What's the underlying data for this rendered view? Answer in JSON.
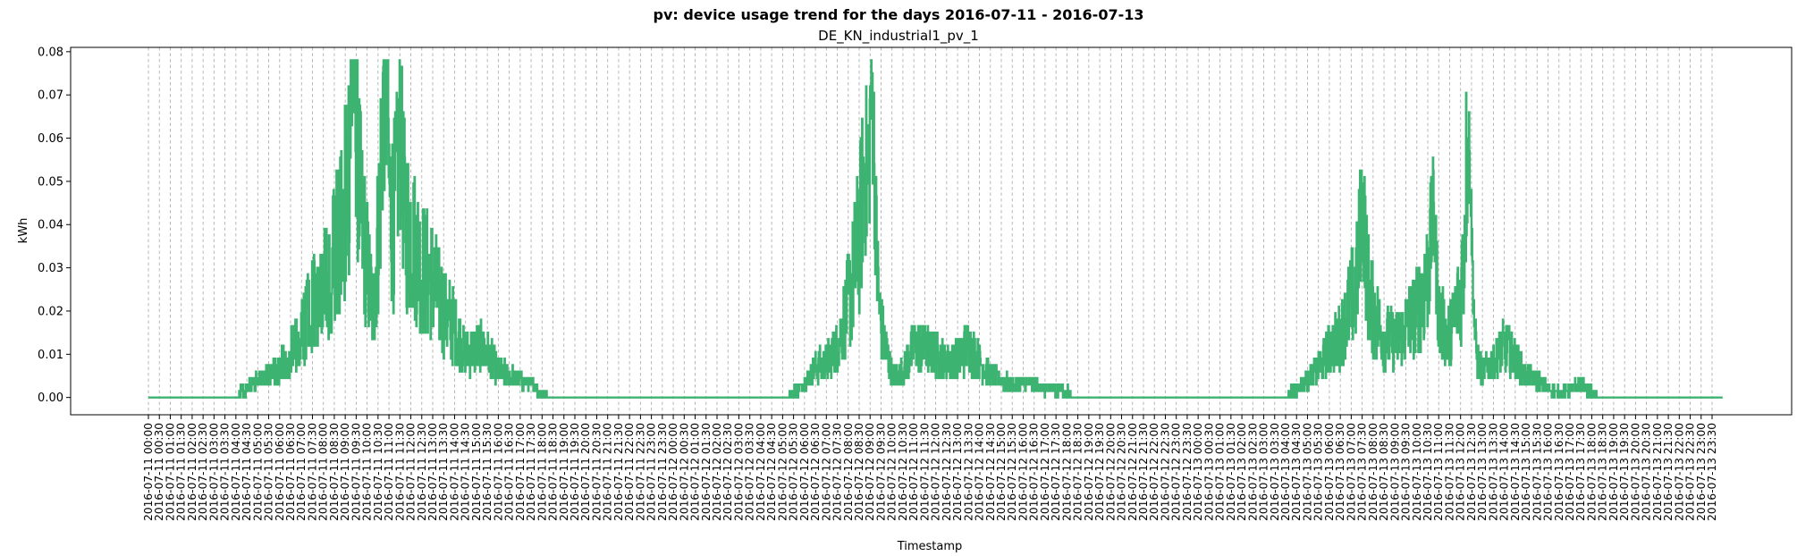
{
  "chart_data": {
    "type": "line",
    "title": "pv: device usage trend for the days 2016-07-11 - 2016-07-13",
    "subtitle": "DE_KN_industrial1_pv_1",
    "xlabel": "Timestamp",
    "ylabel": "kWh",
    "ylim": [
      -0.004,
      0.081
    ],
    "yticks": [
      0.0,
      0.01,
      0.02,
      0.03,
      0.04,
      0.05,
      0.06,
      0.07,
      0.08
    ],
    "ytick_labels": [
      "0.00",
      "0.01",
      "0.02",
      "0.03",
      "0.04",
      "0.05",
      "0.06",
      "0.07",
      "0.08"
    ],
    "x_range": [
      "2016-07-11 00:00",
      "2016-07-13 23:59"
    ],
    "x_tick_interval": "30 min",
    "grid": "vertical dashed at each x tick",
    "series": [
      {
        "color": "#3cb371",
        "points": [
          [
            "2016-07-11 00:00",
            0.0
          ],
          [
            "2016-07-11 04:00",
            0.0
          ],
          [
            "2016-07-11 04:30",
            0.002
          ],
          [
            "2016-07-11 05:00",
            0.004
          ],
          [
            "2016-07-11 05:30",
            0.005
          ],
          [
            "2016-07-11 06:00",
            0.007
          ],
          [
            "2016-07-11 06:30",
            0.01
          ],
          [
            "2016-07-11 07:00",
            0.015
          ],
          [
            "2016-07-11 07:30",
            0.021
          ],
          [
            "2016-07-11 08:00",
            0.025
          ],
          [
            "2016-07-11 08:30",
            0.033
          ],
          [
            "2016-07-11 09:00",
            0.045
          ],
          [
            "2016-07-11 09:20",
            0.065
          ],
          [
            "2016-07-11 09:30",
            0.052
          ],
          [
            "2016-07-11 09:45",
            0.04
          ],
          [
            "2016-07-11 10:00",
            0.03
          ],
          [
            "2016-07-11 10:15",
            0.02
          ],
          [
            "2016-07-11 10:30",
            0.038
          ],
          [
            "2016-07-11 10:45",
            0.06
          ],
          [
            "2016-07-11 11:00",
            0.042
          ],
          [
            "2016-07-11 11:30",
            0.04
          ],
          [
            "2016-07-11 12:00",
            0.038
          ],
          [
            "2016-07-11 12:30",
            0.03
          ],
          [
            "2016-07-11 13:00",
            0.027
          ],
          [
            "2016-07-11 13:30",
            0.02
          ],
          [
            "2016-07-11 14:00",
            0.016
          ],
          [
            "2016-07-11 14:30",
            0.01
          ],
          [
            "2016-07-11 15:00",
            0.012
          ],
          [
            "2016-07-11 15:30",
            0.01
          ],
          [
            "2016-07-11 16:00",
            0.006
          ],
          [
            "2016-07-11 16:30",
            0.005
          ],
          [
            "2016-07-11 17:00",
            0.004
          ],
          [
            "2016-07-11 17:30",
            0.003
          ],
          [
            "2016-07-11 18:00",
            0.001
          ],
          [
            "2016-07-11 18:30",
            0.0
          ],
          [
            "2016-07-12 05:00",
            0.0
          ],
          [
            "2016-07-12 05:30",
            0.001
          ],
          [
            "2016-07-12 06:00",
            0.003
          ],
          [
            "2016-07-12 06:30",
            0.007
          ],
          [
            "2016-07-12 07:00",
            0.008
          ],
          [
            "2016-07-12 07:30",
            0.012
          ],
          [
            "2016-07-12 08:00",
            0.022
          ],
          [
            "2016-07-12 08:30",
            0.036
          ],
          [
            "2016-07-12 09:00",
            0.04
          ],
          [
            "2016-07-12 09:15",
            0.03
          ],
          [
            "2016-07-12 09:30",
            0.016
          ],
          [
            "2016-07-12 10:00",
            0.005
          ],
          [
            "2016-07-12 10:30",
            0.006
          ],
          [
            "2016-07-12 11:00",
            0.012
          ],
          [
            "2016-07-12 11:30",
            0.011
          ],
          [
            "2016-07-12 12:00",
            0.01
          ],
          [
            "2016-07-12 12:30",
            0.008
          ],
          [
            "2016-07-12 13:00",
            0.009
          ],
          [
            "2016-07-12 13:30",
            0.012
          ],
          [
            "2016-07-12 14:00",
            0.008
          ],
          [
            "2016-07-12 14:30",
            0.005
          ],
          [
            "2016-07-12 15:00",
            0.004
          ],
          [
            "2016-07-12 15:30",
            0.003
          ],
          [
            "2016-07-12 16:00",
            0.003
          ],
          [
            "2016-07-12 16:30",
            0.003
          ],
          [
            "2016-07-12 17:00",
            0.002
          ],
          [
            "2016-07-12 17:30",
            0.002
          ],
          [
            "2016-07-12 18:00",
            0.001
          ],
          [
            "2016-07-12 18:30",
            0.0
          ],
          [
            "2016-07-13 04:00",
            0.0
          ],
          [
            "2016-07-13 04:30",
            0.002
          ],
          [
            "2016-07-13 05:00",
            0.004
          ],
          [
            "2016-07-13 05:30",
            0.007
          ],
          [
            "2016-07-13 06:00",
            0.011
          ],
          [
            "2016-07-13 06:30",
            0.014
          ],
          [
            "2016-07-13 07:00",
            0.022
          ],
          [
            "2016-07-13 07:30",
            0.03
          ],
          [
            "2016-07-13 08:00",
            0.02
          ],
          [
            "2016-07-13 08:30",
            0.014
          ],
          [
            "2016-07-13 09:00",
            0.013
          ],
          [
            "2016-07-13 09:30",
            0.016
          ],
          [
            "2016-07-13 10:00",
            0.02
          ],
          [
            "2016-07-13 10:30",
            0.028
          ],
          [
            "2016-07-13 11:00",
            0.018
          ],
          [
            "2016-07-13 11:30",
            0.014
          ],
          [
            "2016-07-13 12:00",
            0.024
          ],
          [
            "2016-07-13 12:15",
            0.04
          ],
          [
            "2016-07-13 12:30",
            0.012
          ],
          [
            "2016-07-13 13:00",
            0.006
          ],
          [
            "2016-07-13 13:30",
            0.008
          ],
          [
            "2016-07-13 14:00",
            0.012
          ],
          [
            "2016-07-13 14:30",
            0.009
          ],
          [
            "2016-07-13 15:00",
            0.005
          ],
          [
            "2016-07-13 15:30",
            0.004
          ],
          [
            "2016-07-13 16:00",
            0.002
          ],
          [
            "2016-07-13 16:30",
            0.001
          ],
          [
            "2016-07-13 17:00",
            0.002
          ],
          [
            "2016-07-13 17:30",
            0.003
          ],
          [
            "2016-07-13 18:00",
            0.001
          ],
          [
            "2016-07-13 18:30",
            0.0
          ],
          [
            "2016-07-13 23:59",
            0.0
          ]
        ],
        "peaks": [
          [
            "2016-07-11 09:25",
            0.077
          ],
          [
            "2016-07-11 10:50",
            0.075
          ],
          [
            "2016-07-11 11:30",
            0.06
          ],
          [
            "2016-07-12 09:05",
            0.069
          ],
          [
            "2016-07-12 08:45",
            0.053
          ],
          [
            "2016-07-13 07:30",
            0.045
          ],
          [
            "2016-07-13 10:45",
            0.042
          ],
          [
            "2016-07-13 12:25",
            0.055
          ]
        ]
      }
    ]
  }
}
